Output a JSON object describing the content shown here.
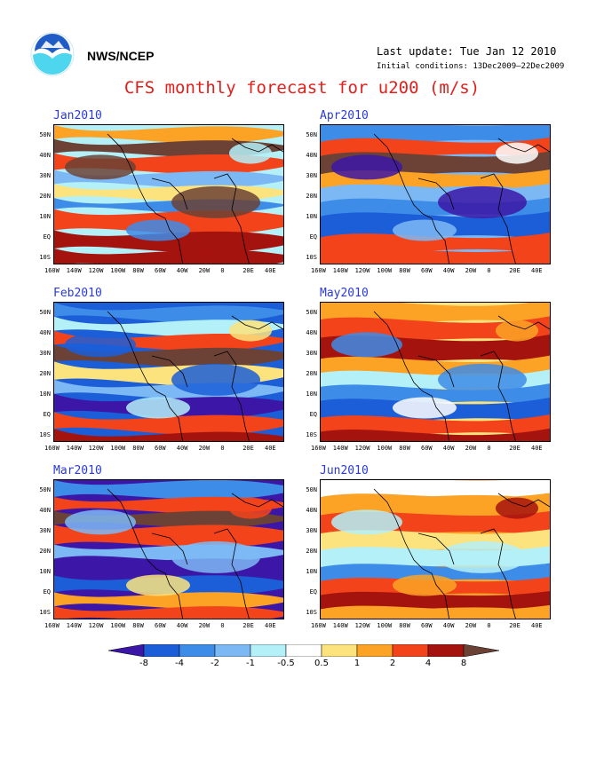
{
  "header": {
    "org": "NWS/NCEP",
    "last_update": "Last update: Tue Jan 12 2010",
    "initial_conditions": "Initial conditions: 13Dec2009–22Dec2009",
    "title": "CFS monthly forecast for u200 (m/s)"
  },
  "colors": {
    "palette": [
      "#3c16a6",
      "#1b5ed8",
      "#3d8ce8",
      "#7cb8f4",
      "#b4f0f8",
      "#ffffff",
      "#fce37e",
      "#fca326",
      "#f2431b",
      "#a5130e",
      "#6b4235"
    ],
    "title_red": "#e0201c",
    "panel_title_blue": "#2a3ad8",
    "logo_blue": "#1f5cc6",
    "logo_cyan": "#4ed6ee"
  },
  "axes": {
    "lat_labels": [
      "50N",
      "40N",
      "30N",
      "20N",
      "10N",
      "EQ",
      "10S"
    ],
    "lon_labels": [
      "160W",
      "140W",
      "120W",
      "100W",
      "80W",
      "60W",
      "40W",
      "20W",
      "0",
      "20E",
      "40E"
    ]
  },
  "panels": [
    {
      "title": "Jan2010"
    },
    {
      "title": "Apr2010"
    },
    {
      "title": "Feb2010"
    },
    {
      "title": "May2010"
    },
    {
      "title": "Mar2010"
    },
    {
      "title": "Jun2010"
    }
  ],
  "colorbar": {
    "labels": [
      "-8",
      "-4",
      "-2",
      "-1",
      "-0.5",
      "0.5",
      "1",
      "2",
      "4",
      "8"
    ]
  }
}
